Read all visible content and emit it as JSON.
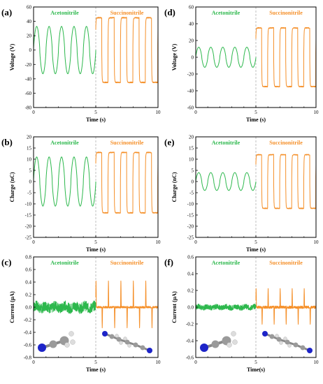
{
  "colors": {
    "acetonitrile": "#2db84d",
    "succinonitrile": "#f5902a",
    "carbon": "#9a9a9a",
    "nitrogen": "#1d24c8",
    "hydrogen": "#dddddd"
  },
  "chart_data": [
    {
      "panel": "(a)",
      "type": "line",
      "xlabel": "Time (s)",
      "ylabel": "Voltage (V)",
      "xlim": [
        0,
        10
      ],
      "ylim": [
        -80,
        60
      ],
      "xticks": [
        0,
        5,
        10
      ],
      "yticks": [
        -80,
        -60,
        -40,
        -20,
        0,
        20,
        40,
        60
      ],
      "divider_x": 5,
      "series": [
        {
          "name": "Acetonitrile",
          "shape": "sine",
          "x_range": [
            0,
            5
          ],
          "periods": 5,
          "min": -33,
          "max": 33
        },
        {
          "name": "Succinonitrile",
          "shape": "square",
          "x_range": [
            5,
            10
          ],
          "periods": 5,
          "min": -45,
          "max": 45
        }
      ]
    },
    {
      "panel": "(b)",
      "type": "line",
      "xlabel": "Time (s)",
      "ylabel": "Charge (nC)",
      "xlim": [
        0,
        10
      ],
      "ylim": [
        -25,
        20
      ],
      "xticks": [
        0,
        5,
        10
      ],
      "yticks": [
        -25,
        -20,
        -15,
        -10,
        -5,
        0,
        5,
        10,
        15,
        20
      ],
      "divider_x": 5,
      "series": [
        {
          "name": "Acetonitrile",
          "shape": "sine",
          "x_range": [
            0,
            5
          ],
          "periods": 5,
          "min": -11,
          "max": 11
        },
        {
          "name": "Succinonitrile",
          "shape": "square",
          "x_range": [
            5,
            10
          ],
          "periods": 5,
          "min": -14,
          "max": 13
        }
      ]
    },
    {
      "panel": "(c)",
      "type": "line",
      "xlabel": "Time (s)",
      "ylabel": "Current (μA)",
      "xlim": [
        0,
        10
      ],
      "ylim": [
        -0.8,
        0.8
      ],
      "xticks": [
        0,
        5,
        10
      ],
      "yticks": [
        -0.8,
        -0.6,
        -0.4,
        -0.2,
        0.0,
        0.2,
        0.4,
        0.6,
        0.8
      ],
      "ytick_labels": [
        "-0.8",
        "-0.6",
        "-0.4",
        "-0.2",
        "0.0",
        "0.2",
        "0.4",
        "0.6",
        "0.8"
      ],
      "divider_x": 5,
      "series": [
        {
          "name": "Acetonitrile",
          "shape": "noise",
          "x_range": [
            0,
            5
          ],
          "amplitude": 0.08,
          "min": -0.15,
          "max": 0.13
        },
        {
          "name": "Succinonitrile",
          "shape": "spikes",
          "x_range": [
            5,
            10
          ],
          "periods": 5,
          "min": -0.37,
          "max": 0.47
        }
      ]
    },
    {
      "panel": "(d)",
      "type": "line",
      "xlabel": "Time (s)",
      "ylabel": "Voltage (V)",
      "xlim": [
        0,
        10
      ],
      "ylim": [
        -60,
        60
      ],
      "xticks": [
        0,
        5,
        10
      ],
      "yticks": [
        -60,
        -40,
        -20,
        0,
        20,
        40,
        60
      ],
      "divider_x": 5,
      "series": [
        {
          "name": "Acetonitrile",
          "shape": "sine",
          "x_range": [
            0,
            5
          ],
          "periods": 5,
          "min": -12,
          "max": 12
        },
        {
          "name": "Succinonitrile",
          "shape": "square",
          "x_range": [
            5,
            10
          ],
          "periods": 5,
          "min": -35,
          "max": 35
        }
      ]
    },
    {
      "panel": "(e)",
      "type": "line",
      "xlabel": "Time (s)",
      "ylabel": "Charge (nC)",
      "xlim": [
        0,
        10
      ],
      "ylim": [
        -25,
        20
      ],
      "xticks": [
        0,
        5,
        10
      ],
      "yticks": [
        -25,
        -20,
        -15,
        -10,
        -5,
        0,
        5,
        10,
        15,
        20
      ],
      "divider_x": 5,
      "series": [
        {
          "name": "Acetonitrile",
          "shape": "sine",
          "x_range": [
            0,
            5
          ],
          "periods": 5,
          "min": -4,
          "max": 4
        },
        {
          "name": "Succinonitrile",
          "shape": "square",
          "x_range": [
            5,
            10
          ],
          "periods": 5,
          "min": -12,
          "max": 12
        }
      ]
    },
    {
      "panel": "(f)",
      "type": "line",
      "xlabel": "Time(s)",
      "ylabel": "Current (μA)",
      "xlim": [
        0,
        10
      ],
      "ylim": [
        -0.6,
        0.6
      ],
      "xticks": [
        0,
        5,
        10
      ],
      "yticks": [
        -0.6,
        -0.4,
        -0.2,
        0.0,
        0.2,
        0.4,
        0.6
      ],
      "ytick_labels": [
        "-0.6",
        "-0.4",
        "-0.2",
        "0.0",
        "0.2",
        "0.4",
        "0.6"
      ],
      "divider_x": 5,
      "series": [
        {
          "name": "Acetonitrile",
          "shape": "noise",
          "x_range": [
            0,
            5
          ],
          "amplitude": 0.03,
          "min": -0.03,
          "max": 0.03
        },
        {
          "name": "Succinonitrile",
          "shape": "spikes",
          "x_range": [
            5,
            10
          ],
          "periods": 5,
          "min": -0.23,
          "max": 0.25
        }
      ]
    }
  ]
}
